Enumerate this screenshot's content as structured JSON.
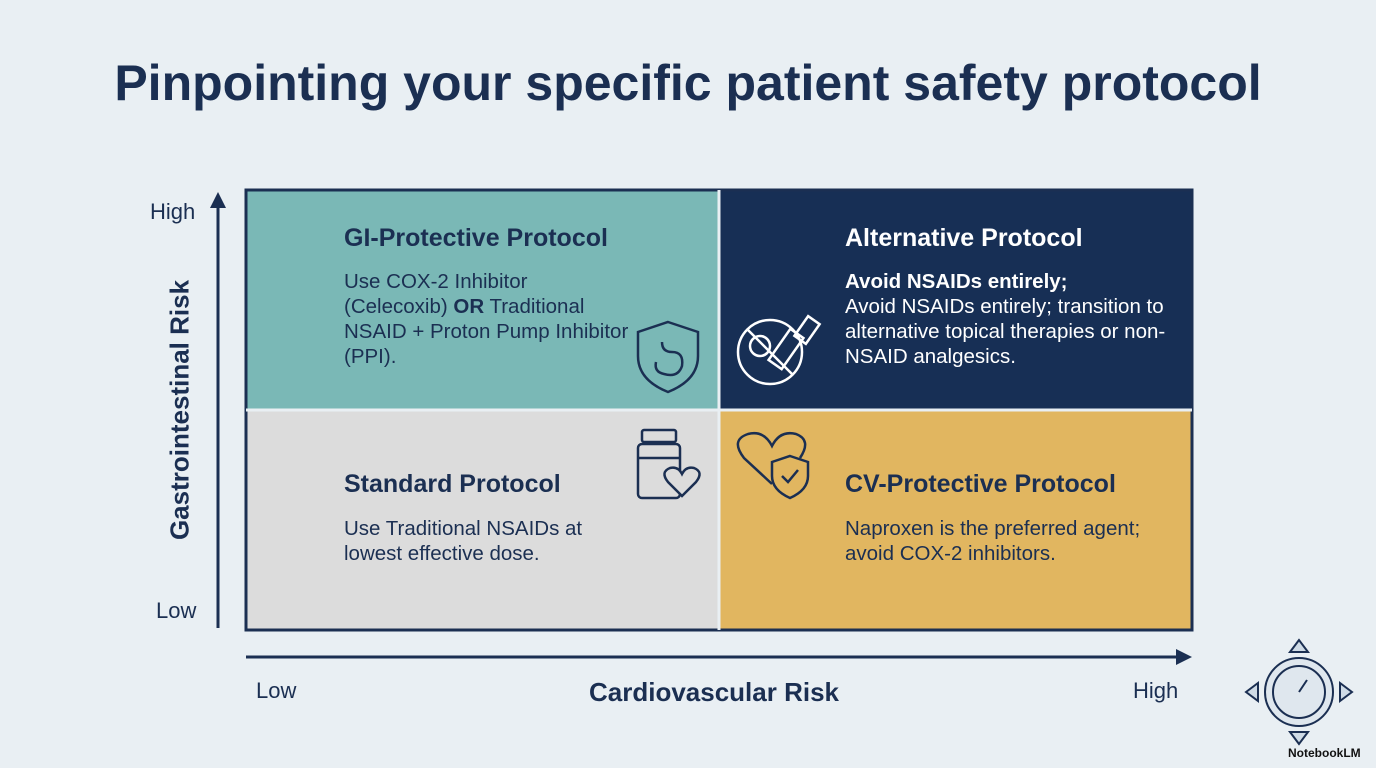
{
  "title": "Pinpointing your specific patient safety protocol",
  "y_axis": {
    "label": "Gastrointestinal Risk",
    "high": "High",
    "low": "Low"
  },
  "x_axis": {
    "label": "Cardiovascular Risk",
    "low": "Low",
    "high": "High"
  },
  "quadrants": [
    {
      "title": "GI-Protective Protocol",
      "body": [
        "Use COX-2 Inhibitor (Celecoxib)",
        "OR",
        "Traditional NSAID + Proton Pump Inhibitor (PPI)."
      ]
    },
    {
      "title": "Alternative Protocol",
      "lead": "Avoid NSAIDs entirely;",
      "body": [
        "Avoid NSAIDs entirely; transition to alternative topical therapies or non-NSAID analgesics."
      ]
    },
    {
      "title": "Standard Protocol",
      "body": [
        "Use Traditional NSAIDs at lowest effective dose."
      ]
    },
    {
      "title": "CV-Protective Protocol",
      "body": [
        "Naproxen is the preferred agent; avoid COX-2 inhibitors."
      ]
    }
  ],
  "watermark": "NotebookLM"
}
